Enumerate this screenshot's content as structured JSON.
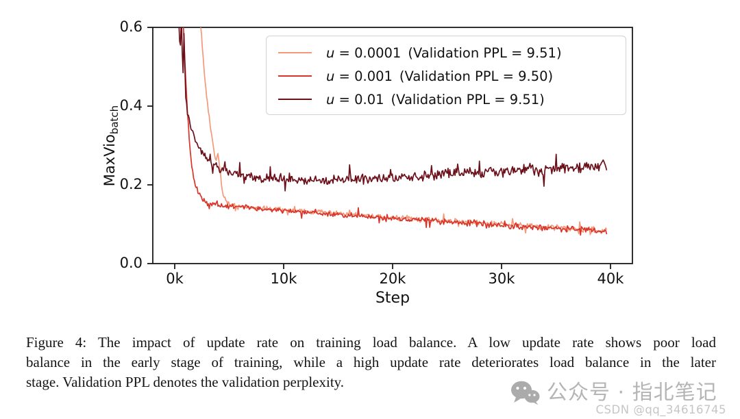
{
  "chart_data": {
    "type": "line",
    "title": "",
    "xlabel": "Step",
    "ylabel": {
      "main": "MaxVio",
      "sub": "batch"
    },
    "xlim_steps": [
      -2000,
      42000
    ],
    "ylim": [
      0.0,
      0.6
    ],
    "grid": false,
    "legend_position": "upper center inside",
    "xticks": {
      "values": [
        0,
        10000,
        20000,
        30000,
        40000
      ],
      "labels": [
        "0k",
        "10k",
        "20k",
        "30k",
        "40k"
      ]
    },
    "yticks": {
      "values": [
        0.0,
        0.2,
        0.4,
        0.6
      ],
      "labels": [
        "0.0",
        "0.2",
        "0.4",
        "0.6"
      ]
    },
    "series": [
      {
        "name": "u = 0.0001  (Validation PPL = 9.51)",
        "legend": {
          "var": "u",
          "eq": " = 0.0001",
          "ppl": "(Validation PPL = 9.51)"
        },
        "color": "#f4987a",
        "noise": 0.006,
        "anchors_kstep_value": [
          [
            0,
            1.0
          ],
          [
            2.0,
            0.72
          ],
          [
            2.4,
            0.6
          ],
          [
            2.55,
            0.545
          ],
          [
            2.7,
            0.49
          ],
          [
            2.9,
            0.43
          ],
          [
            3.1,
            0.385
          ],
          [
            3.3,
            0.34
          ],
          [
            3.55,
            0.295
          ],
          [
            3.8,
            0.26
          ],
          [
            3.95,
            0.285
          ],
          [
            4.1,
            0.25
          ],
          [
            4.3,
            0.2
          ],
          [
            4.5,
            0.17
          ],
          [
            4.8,
            0.156
          ],
          [
            5.2,
            0.149
          ],
          [
            5.7,
            0.147
          ],
          [
            6.3,
            0.145
          ],
          [
            7,
            0.143
          ],
          [
            8,
            0.141
          ],
          [
            10,
            0.137
          ],
          [
            12,
            0.133
          ],
          [
            14,
            0.129
          ],
          [
            16,
            0.125
          ],
          [
            18,
            0.121
          ],
          [
            20,
            0.117
          ],
          [
            22,
            0.114
          ],
          [
            24,
            0.11
          ],
          [
            26,
            0.107
          ],
          [
            28,
            0.103
          ],
          [
            30,
            0.1
          ],
          [
            32,
            0.097
          ],
          [
            34,
            0.093
          ],
          [
            36,
            0.09
          ],
          [
            38,
            0.086
          ],
          [
            39.7,
            0.083
          ]
        ]
      },
      {
        "name": "u = 0.001  (Validation PPL = 9.50)",
        "legend": {
          "var": "u",
          "eq": " = 0.001",
          "ppl": "(Validation PPL = 9.50)"
        },
        "color": "#d7342a",
        "noise": 0.0065,
        "anchors_kstep_value": [
          [
            0,
            1.0
          ],
          [
            0.6,
            0.72
          ],
          [
            0.8,
            0.6
          ],
          [
            0.95,
            0.5
          ],
          [
            1.1,
            0.42
          ],
          [
            1.25,
            0.345
          ],
          [
            1.4,
            0.29
          ],
          [
            1.6,
            0.24
          ],
          [
            1.8,
            0.21
          ],
          [
            2.1,
            0.185
          ],
          [
            2.5,
            0.165
          ],
          [
            2.9,
            0.156
          ],
          [
            3.3,
            0.151
          ],
          [
            4,
            0.148
          ],
          [
            5,
            0.146
          ],
          [
            6,
            0.144
          ],
          [
            7,
            0.142
          ],
          [
            8,
            0.139
          ],
          [
            10,
            0.134
          ],
          [
            12,
            0.13
          ],
          [
            14,
            0.126
          ],
          [
            16,
            0.122
          ],
          [
            18,
            0.118
          ],
          [
            20,
            0.114
          ],
          [
            22,
            0.111
          ],
          [
            24,
            0.108
          ],
          [
            26,
            0.104
          ],
          [
            28,
            0.1
          ],
          [
            30,
            0.097
          ],
          [
            32,
            0.094
          ],
          [
            34,
            0.091
          ],
          [
            36,
            0.088
          ],
          [
            38,
            0.084
          ],
          [
            39.7,
            0.081
          ]
        ]
      },
      {
        "name": "u = 0.01  (Validation PPL = 9.51)",
        "legend": {
          "var": "u",
          "eq": " = 0.01",
          "ppl": "(Validation PPL = 9.51)"
        },
        "color": "#6b0f19",
        "noise": 0.0115,
        "anchors_kstep_value": [
          [
            0,
            1.0
          ],
          [
            0.25,
            0.7
          ],
          [
            0.4,
            0.6
          ],
          [
            0.5,
            0.52
          ],
          [
            0.6,
            0.64
          ],
          [
            0.75,
            0.46
          ],
          [
            0.85,
            0.58
          ],
          [
            1.0,
            0.43
          ],
          [
            1.15,
            0.39
          ],
          [
            1.35,
            0.365
          ],
          [
            1.6,
            0.34
          ],
          [
            1.9,
            0.315
          ],
          [
            2.3,
            0.292
          ],
          [
            2.7,
            0.275
          ],
          [
            3.1,
            0.262
          ],
          [
            3.6,
            0.25
          ],
          [
            4.1,
            0.241
          ],
          [
            4.7,
            0.234
          ],
          [
            5.4,
            0.228
          ],
          [
            6.2,
            0.223
          ],
          [
            7.2,
            0.219
          ],
          [
            8.5,
            0.216
          ],
          [
            10,
            0.214
          ],
          [
            11,
            0.213
          ],
          [
            12,
            0.212
          ],
          [
            13,
            0.211
          ],
          [
            14,
            0.212
          ],
          [
            15,
            0.213
          ],
          [
            16,
            0.214
          ],
          [
            17,
            0.215
          ],
          [
            18,
            0.216
          ],
          [
            19,
            0.218
          ],
          [
            20,
            0.219
          ],
          [
            21,
            0.221
          ],
          [
            22,
            0.222
          ],
          [
            23,
            0.224
          ],
          [
            24,
            0.226
          ],
          [
            25,
            0.228
          ],
          [
            26,
            0.229
          ],
          [
            27,
            0.231
          ],
          [
            28,
            0.233
          ],
          [
            29,
            0.234
          ],
          [
            30,
            0.236
          ],
          [
            31,
            0.237
          ],
          [
            32,
            0.239
          ],
          [
            33,
            0.24
          ],
          [
            34,
            0.241
          ],
          [
            35,
            0.243
          ],
          [
            36,
            0.244
          ],
          [
            37,
            0.245
          ],
          [
            38,
            0.246
          ],
          [
            39,
            0.247
          ],
          [
            39.7,
            0.248
          ]
        ]
      }
    ]
  },
  "caption": {
    "lines": [
      "Figure 4: The impact of update rate on training load balance. A low update rate shows poor load",
      "balance in the early stage of training, while a high update rate deteriorates load balance in the later",
      "stage. Validation PPL denotes the validation perplexity."
    ]
  },
  "watermark": {
    "wechat_label": "公众号 · 指北笔记",
    "csdn_label": "CSDN @qq_34616745",
    "icon_color": "#ababab",
    "text_color": "#b5b5b5"
  }
}
